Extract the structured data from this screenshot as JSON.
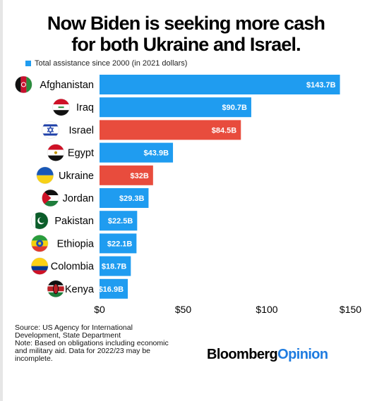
{
  "title_line1": "Now Biden is seeking more cash",
  "title_line2": "for both Ukraine and Israel.",
  "legend_label": "Total assistance since 2000 (in 2021 dollars)",
  "colors": {
    "default": "#1f9cf0",
    "highlight": "#e84c3d"
  },
  "chart_data": {
    "type": "bar",
    "orientation": "horizontal",
    "categories": [
      "Afghanistan",
      "Iraq",
      "Israel",
      "Egypt",
      "Ukraine",
      "Jordan",
      "Pakistan",
      "Ethiopia",
      "Colombia",
      "Kenya"
    ],
    "values": [
      143.7,
      90.7,
      84.5,
      43.9,
      32,
      29.3,
      22.5,
      22.1,
      18.7,
      16.9
    ],
    "data_labels": [
      "$143.7B",
      "$90.7B",
      "$84.5B",
      "$43.9B",
      "$32B",
      "$29.3B",
      "$22.5B",
      "$22.1B",
      "$18.7B",
      "$16.9B"
    ],
    "highlight": [
      "Israel",
      "Ukraine"
    ],
    "series": [
      {
        "name": "Total assistance since 2000 (in 2021 dollars)"
      }
    ],
    "xlim": [
      0,
      150
    ],
    "xticks": [
      0,
      50,
      100,
      150
    ],
    "xtick_labels": [
      "$0",
      "$50",
      "$100",
      "$150"
    ],
    "legend_position": "top-left",
    "grid": false
  },
  "flags": [
    "afghanistan-flag-icon",
    "iraq-flag-icon",
    "israel-flag-icon",
    "egypt-flag-icon",
    "ukraine-flag-icon",
    "jordan-flag-icon",
    "pakistan-flag-icon",
    "ethiopia-flag-icon",
    "colombia-flag-icon",
    "kenya-flag-icon"
  ],
  "source_line1": "Source: US Agency for International",
  "source_line2": "Development, State Department",
  "note_line1": "Note: Based on obligations including economic",
  "note_line2": "and military aid. Data for 2022/23 may be",
  "note_line3": "incomplete.",
  "brand_part1": "Bloomberg",
  "brand_part2": "Opinion"
}
